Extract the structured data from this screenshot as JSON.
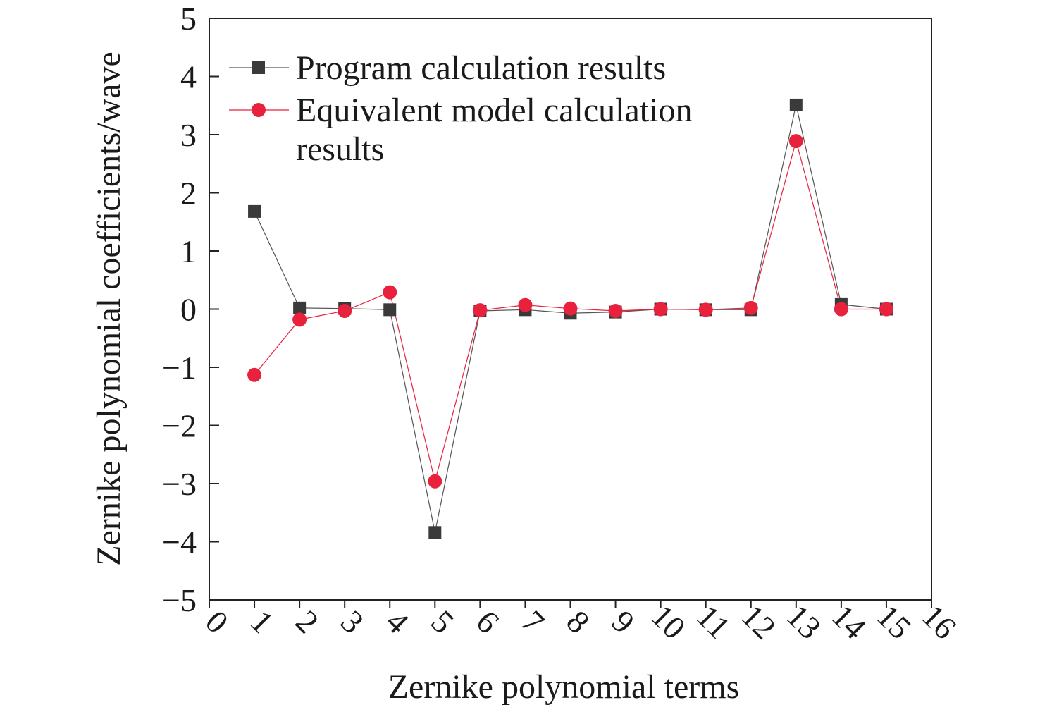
{
  "chart_data": {
    "type": "line",
    "xlabel": "Zernike polynomial terms",
    "ylabel": "Zernike polynomial coefficients/wave",
    "xlim": [
      0,
      16
    ],
    "ylim": [
      -5,
      5
    ],
    "x_ticks": [
      "0",
      "1",
      "2",
      "3",
      "4",
      "5",
      "6",
      "7",
      "8",
      "9",
      "10",
      "11",
      "12",
      "13",
      "14",
      "15",
      "16"
    ],
    "y_ticks": [
      "5",
      "4",
      "3",
      "2",
      "1",
      "0",
      "−1",
      "−2",
      "−3",
      "−4",
      "−5"
    ],
    "grid": false,
    "legend_position": "top-left",
    "x": [
      1,
      2,
      3,
      4,
      5,
      6,
      7,
      8,
      9,
      10,
      11,
      12,
      13,
      14,
      15
    ],
    "series": [
      {
        "name": "Program calculation results",
        "legend_lines": [
          "Program calculation results"
        ],
        "marker": "square",
        "color": "#3a3a3a",
        "values": [
          1.68,
          0.02,
          0.01,
          -0.01,
          -3.84,
          -0.03,
          -0.01,
          -0.07,
          -0.05,
          0.0,
          -0.01,
          -0.01,
          3.51,
          0.08,
          0.0
        ]
      },
      {
        "name": "Equivalent model calculation results",
        "legend_lines": [
          "Equivalent model calculation",
          "results"
        ],
        "marker": "circle",
        "color": "#e8223c",
        "values": [
          -1.13,
          -0.18,
          -0.03,
          0.29,
          -2.96,
          -0.02,
          0.07,
          0.01,
          -0.03,
          0.0,
          -0.01,
          0.02,
          2.89,
          0.0,
          0.0
        ]
      }
    ]
  }
}
